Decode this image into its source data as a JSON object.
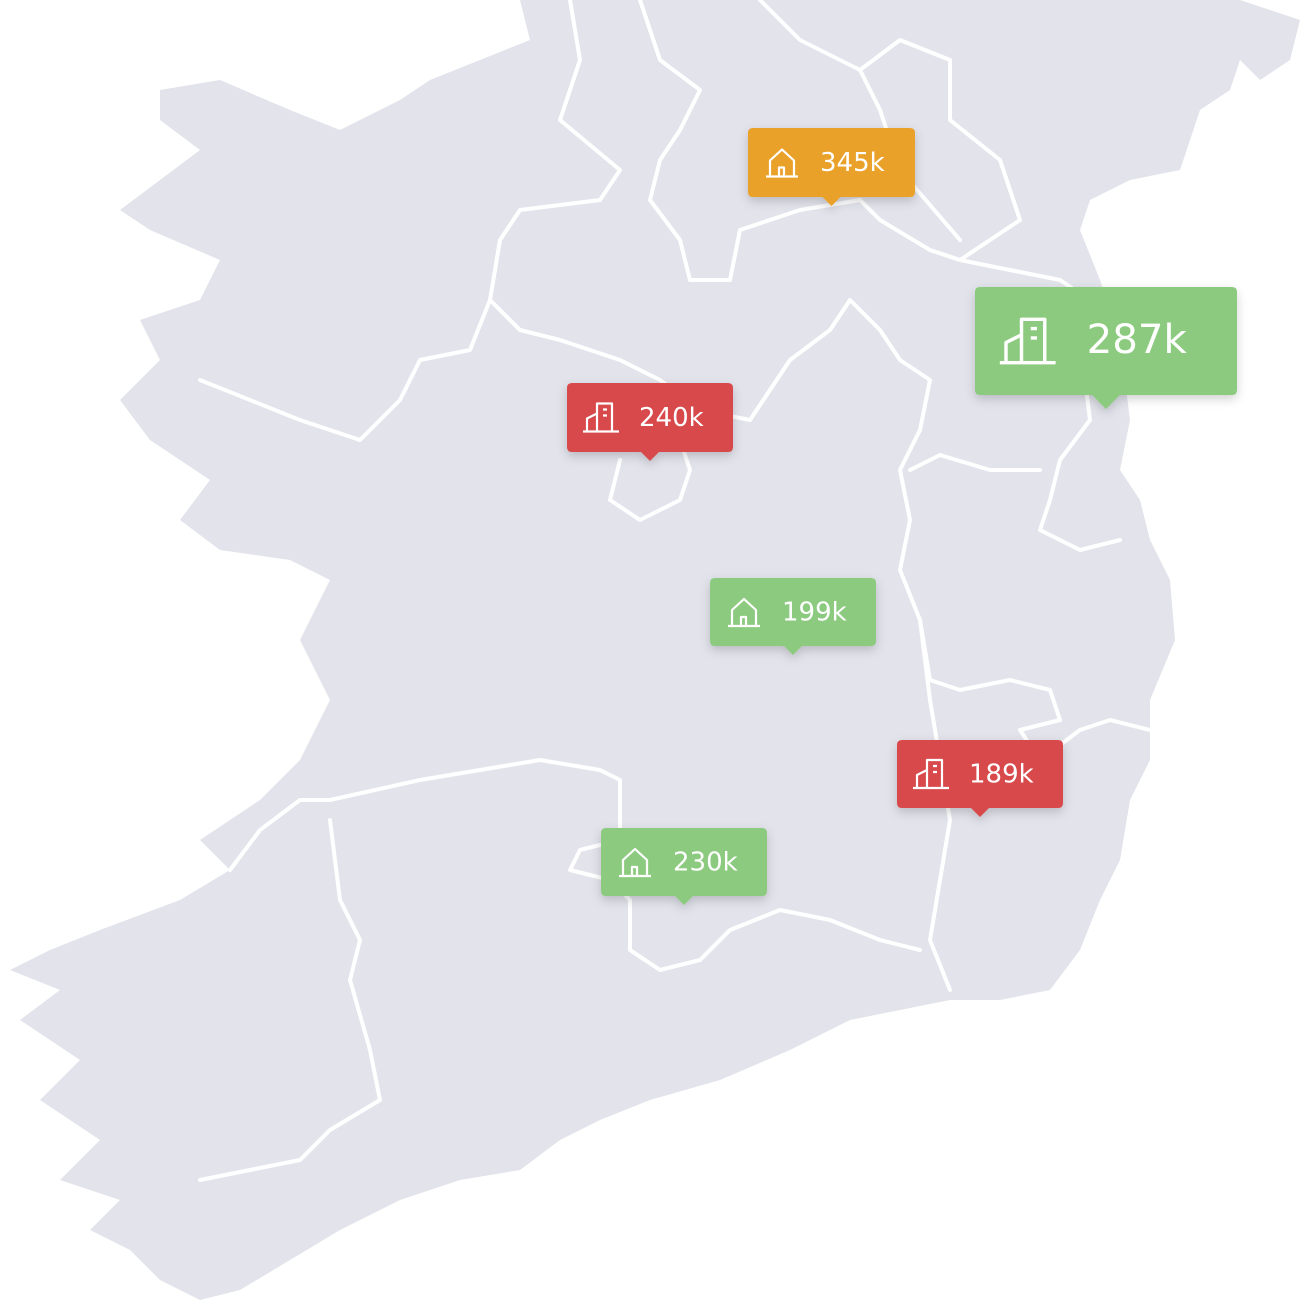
{
  "markers": [
    {
      "label": "345k",
      "color": "#eaa12b",
      "icon": "house"
    },
    {
      "label": "287k",
      "color": "#8ccb7f",
      "icon": "building"
    },
    {
      "label": "240k",
      "color": "#d8484b",
      "icon": "building"
    },
    {
      "label": "199k",
      "color": "#8ccb7f",
      "icon": "house"
    },
    {
      "label": "189k",
      "color": "#d8484b",
      "icon": "building"
    },
    {
      "label": "230k",
      "color": "#8ccb7f",
      "icon": "house"
    }
  ]
}
